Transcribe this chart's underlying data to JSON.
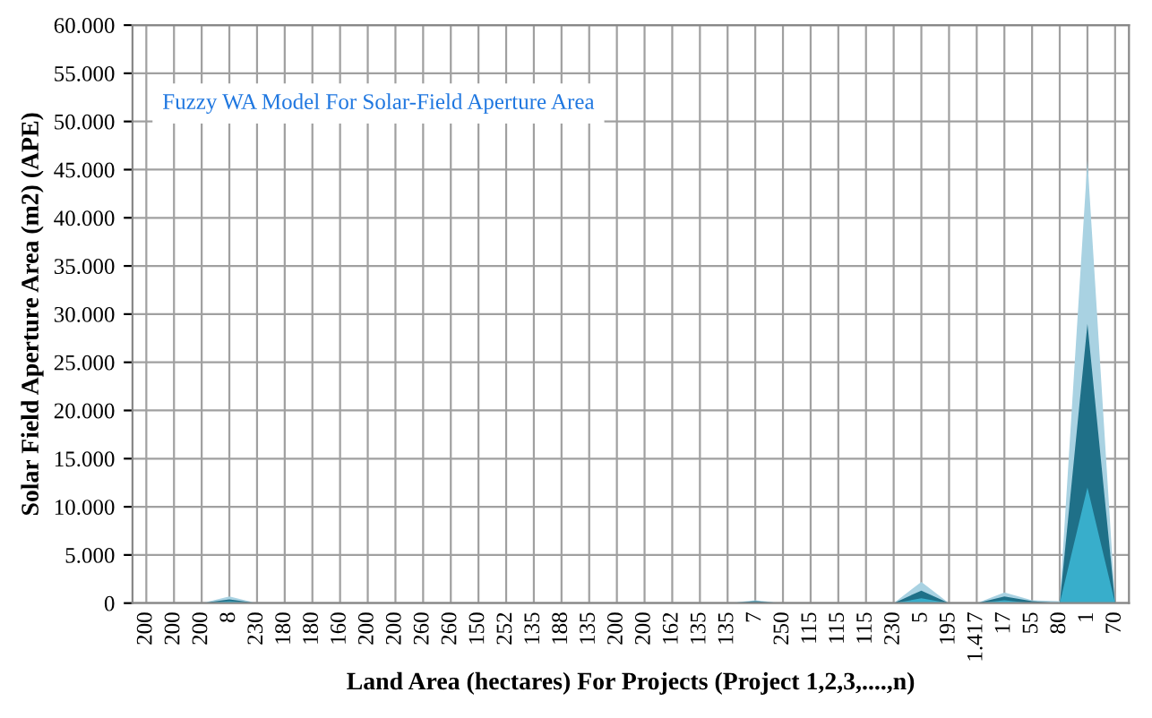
{
  "chart_data": {
    "type": "area",
    "title": "Fuzzy WA Model For Solar-Field Aperture Area",
    "xlabel": "Land Area (hectares) For Projects (Project 1,2,3,....,n)",
    "ylabel": "Solar Field Aperture Area (m2) (APE)",
    "categories": [
      "200",
      "200",
      "200",
      "8",
      "230",
      "180",
      "180",
      "160",
      "200",
      "200",
      "260",
      "260",
      "150",
      "252",
      "135",
      "188",
      "135",
      "200",
      "200",
      "162",
      "135",
      "135",
      "7",
      "250",
      "115",
      "115",
      "115",
      "230",
      "5",
      "195",
      "1.417",
      "17",
      "55",
      "80",
      "1",
      "70"
    ],
    "series": [
      {
        "color": "#a9d2e2",
        "values": [
          0,
          0,
          0,
          700,
          0,
          0,
          0,
          0,
          0,
          0,
          0,
          0,
          0,
          0,
          0,
          0,
          0,
          0,
          0,
          0,
          0,
          0,
          300,
          0,
          0,
          0,
          0,
          0,
          2200,
          0,
          0,
          1100,
          300,
          200,
          46000,
          0
        ]
      },
      {
        "color": "#1f7088",
        "values": [
          0,
          0,
          0,
          400,
          0,
          0,
          0,
          0,
          0,
          0,
          0,
          0,
          0,
          0,
          0,
          0,
          0,
          0,
          0,
          0,
          0,
          0,
          200,
          0,
          0,
          0,
          0,
          0,
          1300,
          0,
          0,
          700,
          200,
          0,
          29000,
          0
        ]
      },
      {
        "color": "#38aecb",
        "values": [
          0,
          0,
          0,
          200,
          0,
          0,
          0,
          0,
          0,
          0,
          0,
          0,
          0,
          0,
          0,
          0,
          0,
          0,
          0,
          0,
          0,
          0,
          0,
          0,
          0,
          0,
          0,
          0,
          500,
          0,
          0,
          300,
          0,
          0,
          12000,
          0
        ]
      }
    ],
    "ylim": [
      0,
      60000
    ],
    "yticks": [
      0,
      {
        "value": 5000,
        "label": "5.000"
      },
      {
        "value": 10000,
        "label": "10.000"
      },
      {
        "value": 15000,
        "label": "15.000"
      },
      {
        "value": 20000,
        "label": "20.000"
      },
      {
        "value": 25000,
        "label": "25.000"
      },
      {
        "value": 30000,
        "label": "30.000"
      },
      {
        "value": 35000,
        "label": "35.000"
      },
      {
        "value": 40000,
        "label": "40.000"
      },
      {
        "value": 45000,
        "label": "45.000"
      },
      {
        "value": 50000,
        "label": "50.000"
      },
      {
        "value": 55000,
        "label": "55.000"
      },
      {
        "value": 60000,
        "label": "60.000"
      }
    ],
    "grid": true
  }
}
